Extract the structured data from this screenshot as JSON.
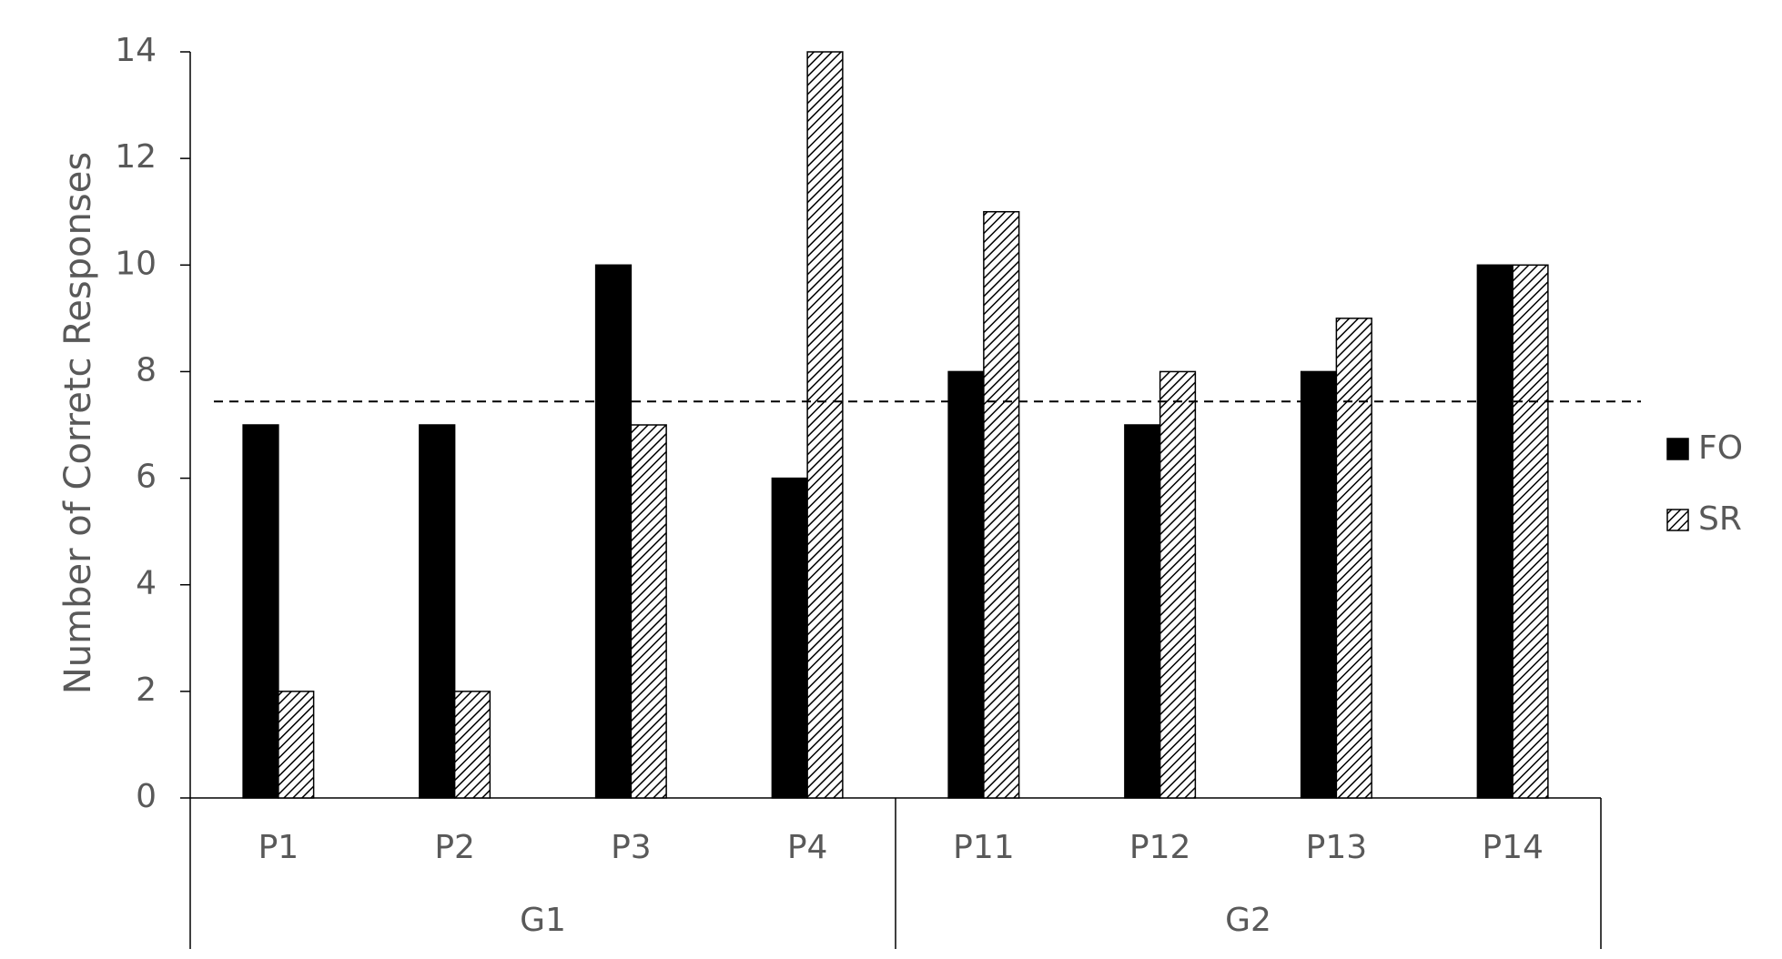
{
  "chart_data": {
    "type": "bar",
    "y_label": "Number of Corretc Responses",
    "groups": [
      {
        "name": "G1",
        "categories": [
          "P1",
          "P2",
          "P3",
          "P4"
        ]
      },
      {
        "name": "G2",
        "categories": [
          "P11",
          "P12",
          "P13",
          "P14"
        ]
      }
    ],
    "series": [
      {
        "name": "FO",
        "color": "#000000",
        "values": [
          7,
          7,
          10,
          6,
          8,
          7,
          8,
          10
        ]
      },
      {
        "name": "SR",
        "color": "#000000",
        "pattern": "diagonal-hatch",
        "values": [
          2,
          2,
          7,
          14,
          11,
          8,
          9,
          10
        ]
      }
    ],
    "reference_line": 7.44,
    "ylim": [
      0,
      14
    ],
    "yticks": [
      0,
      2,
      4,
      6,
      8,
      10,
      12,
      14
    ],
    "legend": "right"
  }
}
